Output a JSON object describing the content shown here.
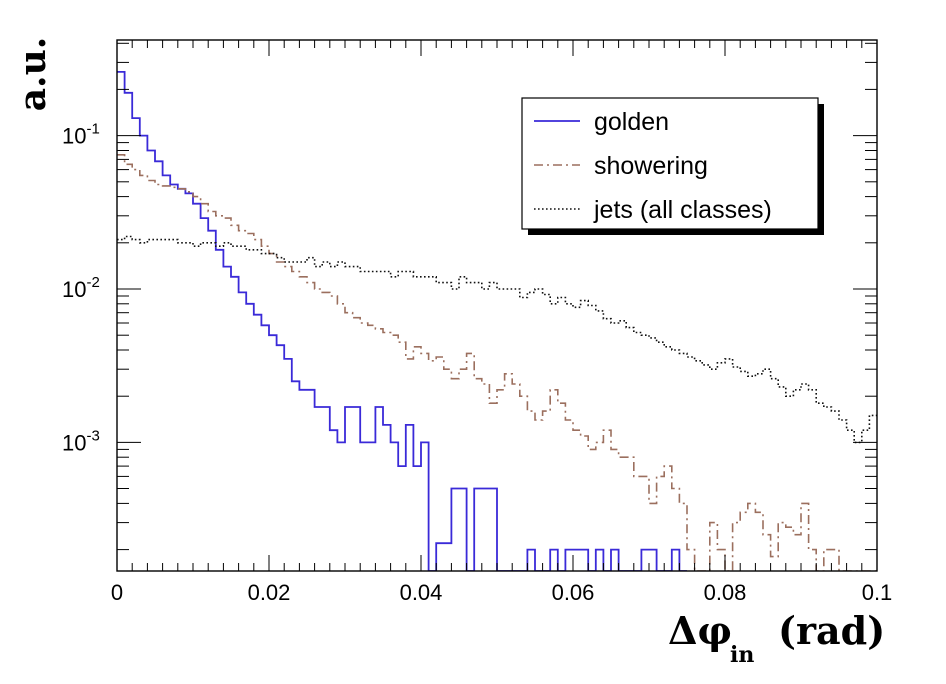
{
  "chart_data": {
    "type": "line",
    "title": "",
    "xlabel_main": "Δφ",
    "xlabel_sub": "in",
    "xlabel_unit": "(rad)",
    "ylabel": "a.u.",
    "xlim": [
      0,
      0.1
    ],
    "ylim": [
      0.000145,
      0.42
    ],
    "y_scale": "log",
    "grid": false,
    "legend_position": "top-right",
    "x_ticks": [
      "0",
      "0.02",
      "0.04",
      "0.06",
      "0.08",
      "0.1"
    ],
    "y_ticks": [
      {
        "base": "10",
        "exp": "-1"
      },
      {
        "base": "10",
        "exp": "-2"
      },
      {
        "base": "10",
        "exp": "-3"
      }
    ],
    "bin_width": 0.001,
    "series": [
      {
        "name": "golden",
        "color": "#3a2ad8",
        "dash": "solid",
        "values": [
          0.26,
          0.19,
          0.13,
          0.1,
          0.08,
          0.068,
          0.055,
          0.048,
          0.045,
          0.042,
          0.036,
          0.029,
          0.024,
          0.018,
          0.014,
          0.012,
          0.0095,
          0.008,
          0.0068,
          0.0058,
          0.005,
          0.0043,
          0.0035,
          0.0025,
          0.0022,
          0.0022,
          0.0017,
          0.0017,
          0.0012,
          0.001,
          0.0017,
          0.0017,
          0.001,
          0.001,
          0.0017,
          0.0013,
          0.001,
          0.0007,
          0.0013,
          0.0007,
          0.001,
          0.0001,
          0.00022,
          0.00022,
          0.0005,
          0.0005,
          0.0001,
          0.0005,
          0.0005,
          0.0005,
          0.0001,
          0.0001,
          0.0001,
          0.0001,
          0.0002,
          0.0001,
          0.0001,
          0.0002,
          0.0001,
          0.0002,
          0.0002,
          0.0002,
          0.0001,
          0.0002,
          0.0001,
          0.0002,
          0.0001,
          0.0001,
          0.0001,
          0.0002,
          0.0002,
          0.0001,
          0.0001,
          0.0002,
          0.0001,
          null,
          null,
          null,
          null,
          null,
          null,
          null,
          null,
          null,
          null,
          null,
          null,
          null,
          null,
          null,
          null,
          null,
          null,
          null,
          null,
          null,
          null,
          null,
          null,
          null
        ]
      },
      {
        "name": "showering",
        "color": "#9b6f5e",
        "dash": "dashdot",
        "values": [
          0.075,
          0.065,
          0.06,
          0.055,
          0.051,
          0.048,
          0.047,
          0.046,
          0.045,
          0.043,
          0.04,
          0.036,
          0.032,
          0.03,
          0.029,
          0.026,
          0.024,
          0.023,
          0.021,
          0.019,
          0.017,
          0.015,
          0.014,
          0.013,
          0.012,
          0.011,
          0.01,
          0.0095,
          0.009,
          0.008,
          0.007,
          0.0065,
          0.006,
          0.0058,
          0.0055,
          0.0052,
          0.005,
          0.0045,
          0.0035,
          0.0042,
          0.0038,
          0.0034,
          0.0036,
          0.003,
          0.0026,
          0.003,
          0.0038,
          0.0026,
          0.0024,
          0.0018,
          0.0022,
          0.0028,
          0.0024,
          0.002,
          0.0016,
          0.0014,
          0.0016,
          0.0022,
          0.0018,
          0.0014,
          0.0012,
          0.0011,
          0.0009,
          0.001,
          0.0012,
          0.0009,
          0.0008,
          0.0008,
          0.0006,
          0.0006,
          0.0004,
          0.0006,
          0.0007,
          0.0005,
          0.0004,
          0.0002,
          0.0001,
          0.0001,
          0.0003,
          0.0002,
          0.0001,
          0.0003,
          0.00035,
          0.0004,
          0.00035,
          0.00025,
          0.00018,
          0.0003,
          0.00028,
          0.00025,
          0.0004,
          0.0002,
          0.0001,
          0.0002,
          0.0002,
          0.0001,
          0.0001,
          0.0001,
          0.0001,
          0.0001
        ]
      },
      {
        "name": "jets (all classes)",
        "color": "#111111",
        "dash": "dotted",
        "values": [
          0.021,
          0.022,
          0.021,
          0.02,
          0.021,
          0.021,
          0.021,
          0.021,
          0.02,
          0.02,
          0.019,
          0.02,
          0.02,
          0.019,
          0.02,
          0.019,
          0.019,
          0.018,
          0.018,
          0.017,
          0.017,
          0.016,
          0.015,
          0.015,
          0.015,
          0.016,
          0.014,
          0.015,
          0.014,
          0.015,
          0.014,
          0.014,
          0.013,
          0.013,
          0.013,
          0.013,
          0.012,
          0.013,
          0.013,
          0.012,
          0.012,
          0.012,
          0.011,
          0.011,
          0.01,
          0.012,
          0.011,
          0.011,
          0.01,
          0.011,
          0.01,
          0.01,
          0.01,
          0.0088,
          0.0095,
          0.01,
          0.0092,
          0.008,
          0.0088,
          0.008,
          0.0076,
          0.0084,
          0.0078,
          0.0072,
          0.0064,
          0.006,
          0.0062,
          0.0056,
          0.0052,
          0.005,
          0.0048,
          0.0045,
          0.0042,
          0.004,
          0.0038,
          0.0036,
          0.0034,
          0.0032,
          0.003,
          0.0033,
          0.0035,
          0.0031,
          0.0029,
          0.0027,
          0.0028,
          0.003,
          0.0026,
          0.0023,
          0.002,
          0.0022,
          0.0024,
          0.0022,
          0.0018,
          0.0017,
          0.0016,
          0.0014,
          0.0012,
          0.001,
          0.0012,
          0.0015
        ]
      }
    ]
  }
}
